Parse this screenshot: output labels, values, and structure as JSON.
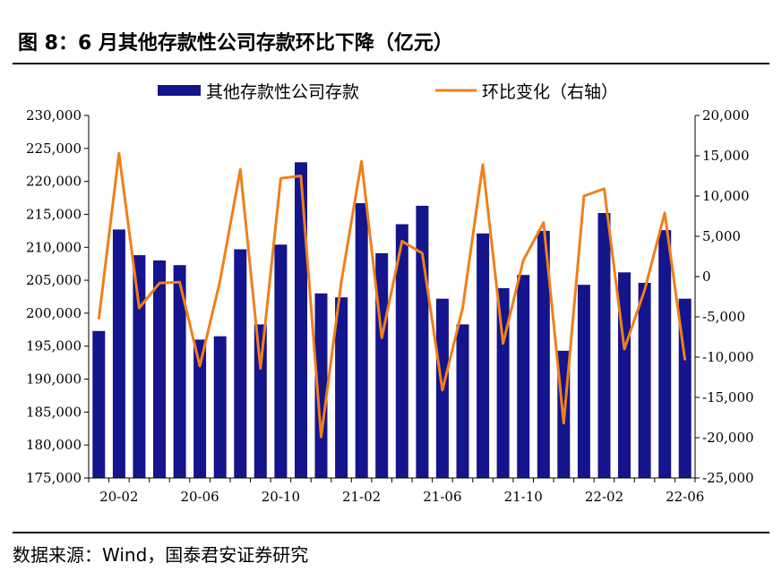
{
  "header": {
    "title": "图 8：6 月其他存款性公司存款环比下降（亿元）"
  },
  "footer": {
    "source": "数据来源：Wind，国泰君安证券研究"
  },
  "colors": {
    "bar": "#14148c",
    "line": "#f07f1b",
    "axis": "#000000"
  },
  "chart_data": {
    "type": "bar",
    "categories": [
      "20-01",
      "20-02",
      "20-03",
      "20-04",
      "20-05",
      "20-06",
      "20-07",
      "20-08",
      "20-09",
      "20-10",
      "20-11",
      "20-12",
      "21-01",
      "21-02",
      "21-03",
      "21-04",
      "21-05",
      "21-06",
      "21-07",
      "21-08",
      "21-09",
      "21-10",
      "21-11",
      "21-12",
      "22-01",
      "22-02",
      "22-03",
      "22-04",
      "22-05",
      "22-06"
    ],
    "x_tick_labels": [
      "20-02",
      "20-06",
      "20-10",
      "21-02",
      "21-06",
      "21-10",
      "22-02",
      "22-06"
    ],
    "x_tick_label_indices": [
      1,
      5,
      9,
      13,
      17,
      21,
      25,
      29
    ],
    "series": [
      {
        "name": "其他存款性公司存款",
        "type": "bar",
        "axis": "left",
        "values": [
          197300,
          212700,
          208800,
          208000,
          207300,
          196000,
          196500,
          209700,
          198300,
          210400,
          222900,
          203000,
          202400,
          216700,
          209100,
          213500,
          216300,
          202200,
          198300,
          212100,
          203800,
          205800,
          212500,
          194300,
          204300,
          215200,
          206200,
          204600,
          212600,
          202200
        ]
      },
      {
        "name": "环比变化（右轴）",
        "type": "line",
        "axis": "right",
        "values": [
          -5300,
          15300,
          -3900,
          -800,
          -700,
          -11100,
          -500,
          13300,
          -11400,
          12200,
          12500,
          -19900,
          -600,
          14300,
          -7600,
          4400,
          2900,
          -14100,
          -3900,
          13900,
          -8300,
          2000,
          6700,
          -18200,
          10000,
          10900,
          -9000,
          -1700,
          7900,
          -10400
        ]
      }
    ],
    "y_left": {
      "range": [
        175000,
        230000
      ],
      "ticks": [
        230000,
        225000,
        220000,
        215000,
        210000,
        205000,
        200000,
        195000,
        190000,
        185000,
        180000,
        175000
      ],
      "tick_labels": [
        "230,000",
        "225,000",
        "220,000",
        "215,000",
        "210,000",
        "205,000",
        "200,000",
        "195,000",
        "190,000",
        "185,000",
        "180,000",
        "175,000"
      ]
    },
    "y_right": {
      "range": [
        -25000,
        20000
      ],
      "ticks": [
        20000,
        15000,
        10000,
        5000,
        0,
        -5000,
        -10000,
        -15000,
        -20000,
        -25000
      ],
      "tick_labels": [
        "20,000",
        "15,000",
        "10,000",
        "5,000",
        "0",
        "-5,000",
        "-10,000",
        "-15,000",
        "-20,000",
        "-25,000"
      ]
    },
    "legend": {
      "position": "top-center"
    },
    "grid": false
  }
}
